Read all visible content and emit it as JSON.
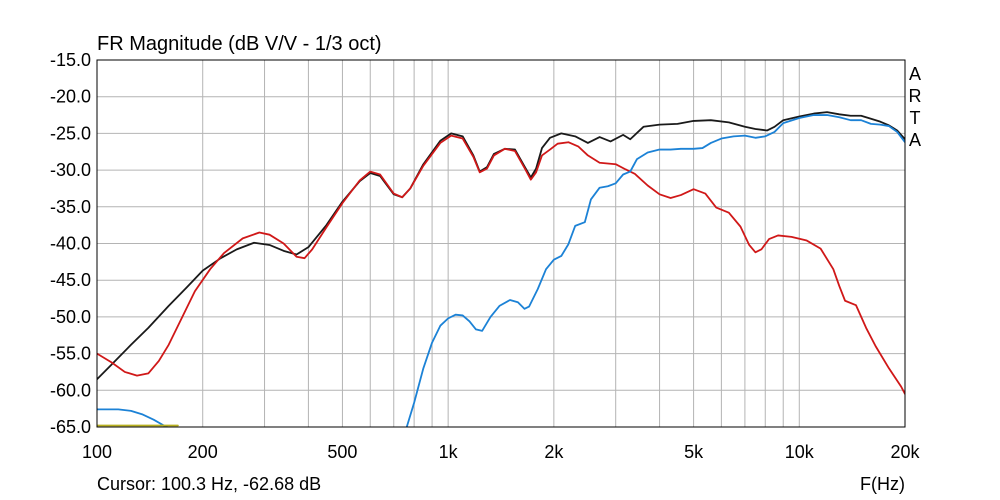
{
  "chart_data": {
    "type": "line",
    "title": "FR Magnitude (dB V/V - 1/3 oct)",
    "xlabel": "F(Hz)",
    "ylabel": "",
    "x_scale": "log",
    "xlim": [
      100,
      20000
    ],
    "ylim": [
      -65,
      -15
    ],
    "grid": true,
    "watermark": "ARTA",
    "cursor_readout": "Cursor: 100.3 Hz, -62.68 dB",
    "x_ticks": [
      {
        "value": 100,
        "label": "100"
      },
      {
        "value": 200,
        "label": "200"
      },
      {
        "value": 500,
        "label": "500"
      },
      {
        "value": 1000,
        "label": "1k"
      },
      {
        "value": 2000,
        "label": "2k"
      },
      {
        "value": 5000,
        "label": "5k"
      },
      {
        "value": 10000,
        "label": "10k"
      },
      {
        "value": 20000,
        "label": "20k"
      }
    ],
    "y_ticks": [
      {
        "value": -15,
        "label": "-15.0"
      },
      {
        "value": -20,
        "label": "-20.0"
      },
      {
        "value": -25,
        "label": "-25.0"
      },
      {
        "value": -30,
        "label": "-30.0"
      },
      {
        "value": -35,
        "label": "-35.0"
      },
      {
        "value": -40,
        "label": "-40.0"
      },
      {
        "value": -45,
        "label": "-45.0"
      },
      {
        "value": -50,
        "label": "-50.0"
      },
      {
        "value": -55,
        "label": "-55.0"
      },
      {
        "value": -60,
        "label": "-60.0"
      },
      {
        "value": -65,
        "label": "-65.0"
      }
    ],
    "series": [
      {
        "color": "#1a1a1a",
        "points": [
          [
            100,
            -58.5
          ],
          [
            110,
            -56.5
          ],
          [
            125,
            -53.8
          ],
          [
            140,
            -51.5
          ],
          [
            160,
            -48.5
          ],
          [
            180,
            -46
          ],
          [
            200,
            -43.7
          ],
          [
            225,
            -42
          ],
          [
            250,
            -40.8
          ],
          [
            280,
            -39.9
          ],
          [
            310,
            -40.2
          ],
          [
            340,
            -41
          ],
          [
            370,
            -41.5
          ],
          [
            400,
            -40.5
          ],
          [
            450,
            -37.5
          ],
          [
            500,
            -34.3
          ],
          [
            560,
            -31.5
          ],
          [
            600,
            -30.4
          ],
          [
            640,
            -30.8
          ],
          [
            700,
            -33.3
          ],
          [
            740,
            -33.7
          ],
          [
            780,
            -32.5
          ],
          [
            850,
            -29.2
          ],
          [
            950,
            -26
          ],
          [
            1020,
            -25
          ],
          [
            1100,
            -25.4
          ],
          [
            1180,
            -28
          ],
          [
            1230,
            -30.2
          ],
          [
            1290,
            -29.6
          ],
          [
            1350,
            -27.8
          ],
          [
            1450,
            -27.1
          ],
          [
            1550,
            -27.2
          ],
          [
            1650,
            -29.5
          ],
          [
            1720,
            -31
          ],
          [
            1780,
            -29.8
          ],
          [
            1850,
            -27
          ],
          [
            1950,
            -25.6
          ],
          [
            2100,
            -25
          ],
          [
            2300,
            -25.4
          ],
          [
            2500,
            -26.3
          ],
          [
            2700,
            -25.5
          ],
          [
            2900,
            -26.1
          ],
          [
            3150,
            -25.2
          ],
          [
            3300,
            -25.8
          ],
          [
            3600,
            -24.1
          ],
          [
            4000,
            -23.8
          ],
          [
            4500,
            -23.7
          ],
          [
            5000,
            -23.3
          ],
          [
            5600,
            -23.2
          ],
          [
            6300,
            -23.5
          ],
          [
            7000,
            -24.1
          ],
          [
            7500,
            -24.4
          ],
          [
            8100,
            -24.6
          ],
          [
            8500,
            -24.1
          ],
          [
            9000,
            -23.2
          ],
          [
            10000,
            -22.7
          ],
          [
            11000,
            -22.3
          ],
          [
            12000,
            -22.1
          ],
          [
            13000,
            -22.4
          ],
          [
            14000,
            -22.6
          ],
          [
            15000,
            -22.6
          ],
          [
            16000,
            -23
          ],
          [
            17000,
            -23.4
          ],
          [
            18000,
            -23.9
          ],
          [
            19000,
            -24.6
          ],
          [
            20000,
            -25.8
          ]
        ]
      },
      {
        "color": "#d01818",
        "points": [
          [
            100,
            -55
          ],
          [
            110,
            -56.2
          ],
          [
            120,
            -57.5
          ],
          [
            130,
            -58
          ],
          [
            140,
            -57.7
          ],
          [
            150,
            -56
          ],
          [
            160,
            -53.8
          ],
          [
            175,
            -50
          ],
          [
            190,
            -46.5
          ],
          [
            210,
            -43.5
          ],
          [
            230,
            -41.3
          ],
          [
            260,
            -39.3
          ],
          [
            290,
            -38.5
          ],
          [
            310,
            -38.8
          ],
          [
            340,
            -40
          ],
          [
            370,
            -41.8
          ],
          [
            390,
            -42
          ],
          [
            410,
            -40.8
          ],
          [
            450,
            -37.8
          ],
          [
            500,
            -34.5
          ],
          [
            560,
            -31.4
          ],
          [
            600,
            -30.2
          ],
          [
            640,
            -30.6
          ],
          [
            700,
            -33.2
          ],
          [
            740,
            -33.7
          ],
          [
            780,
            -32.5
          ],
          [
            850,
            -29.4
          ],
          [
            950,
            -26.3
          ],
          [
            1020,
            -25.3
          ],
          [
            1100,
            -25.7
          ],
          [
            1180,
            -28.2
          ],
          [
            1230,
            -30.3
          ],
          [
            1290,
            -29.8
          ],
          [
            1350,
            -28
          ],
          [
            1450,
            -27.1
          ],
          [
            1550,
            -27.4
          ],
          [
            1650,
            -29.7
          ],
          [
            1720,
            -31.3
          ],
          [
            1780,
            -30.3
          ],
          [
            1850,
            -28
          ],
          [
            1950,
            -27.2
          ],
          [
            2050,
            -26.4
          ],
          [
            2200,
            -26.2
          ],
          [
            2350,
            -26.8
          ],
          [
            2500,
            -28
          ],
          [
            2700,
            -29
          ],
          [
            3000,
            -29.2
          ],
          [
            3200,
            -29.9
          ],
          [
            3400,
            -30.5
          ],
          [
            3700,
            -32.1
          ],
          [
            4000,
            -33.3
          ],
          [
            4300,
            -33.8
          ],
          [
            4600,
            -33.4
          ],
          [
            5000,
            -32.6
          ],
          [
            5400,
            -33.2
          ],
          [
            5800,
            -35.1
          ],
          [
            6300,
            -35.8
          ],
          [
            6800,
            -37.7
          ],
          [
            7200,
            -40.2
          ],
          [
            7500,
            -41.2
          ],
          [
            7800,
            -40.8
          ],
          [
            8200,
            -39.4
          ],
          [
            8700,
            -38.9
          ],
          [
            9500,
            -39.1
          ],
          [
            10500,
            -39.6
          ],
          [
            11500,
            -40.7
          ],
          [
            12500,
            -43.5
          ],
          [
            13000,
            -45.8
          ],
          [
            13500,
            -47.8
          ],
          [
            14500,
            -48.4
          ],
          [
            15500,
            -51.5
          ],
          [
            16500,
            -54
          ],
          [
            18000,
            -57
          ],
          [
            19500,
            -59.5
          ],
          [
            20000,
            -60.5
          ]
        ]
      },
      {
        "color": "#1c82d6",
        "points": [
          [
            760,
            -65.2
          ],
          [
            800,
            -61.7
          ],
          [
            850,
            -57
          ],
          [
            900,
            -53.5
          ],
          [
            950,
            -51.2
          ],
          [
            1000,
            -50.2
          ],
          [
            1050,
            -49.7
          ],
          [
            1100,
            -49.8
          ],
          [
            1150,
            -50.6
          ],
          [
            1200,
            -51.7
          ],
          [
            1250,
            -51.9
          ],
          [
            1320,
            -50
          ],
          [
            1400,
            -48.5
          ],
          [
            1500,
            -47.7
          ],
          [
            1580,
            -48
          ],
          [
            1650,
            -48.9
          ],
          [
            1700,
            -48.6
          ],
          [
            1800,
            -46.2
          ],
          [
            1900,
            -43.5
          ],
          [
            2000,
            -42.2
          ],
          [
            2100,
            -41.7
          ],
          [
            2200,
            -40.1
          ],
          [
            2300,
            -37.6
          ],
          [
            2450,
            -37.1
          ],
          [
            2550,
            -34
          ],
          [
            2700,
            -32.4
          ],
          [
            2850,
            -32.2
          ],
          [
            3000,
            -31.8
          ],
          [
            3150,
            -30.6
          ],
          [
            3300,
            -30.2
          ],
          [
            3450,
            -28.5
          ],
          [
            3700,
            -27.6
          ],
          [
            4000,
            -27.2
          ],
          [
            4300,
            -27.2
          ],
          [
            4600,
            -27.1
          ],
          [
            5000,
            -27.1
          ],
          [
            5300,
            -27
          ],
          [
            5600,
            -26.3
          ],
          [
            6000,
            -25.7
          ],
          [
            6500,
            -25.4
          ],
          [
            7000,
            -25.3
          ],
          [
            7500,
            -25.6
          ],
          [
            8000,
            -25.4
          ],
          [
            8500,
            -24.8
          ],
          [
            9000,
            -23.6
          ],
          [
            10000,
            -22.9
          ],
          [
            11000,
            -22.5
          ],
          [
            12000,
            -22.5
          ],
          [
            13000,
            -22.8
          ],
          [
            14000,
            -23.2
          ],
          [
            15000,
            -23.2
          ],
          [
            16000,
            -23.7
          ],
          [
            17000,
            -23.8
          ],
          [
            18000,
            -24
          ],
          [
            19000,
            -24.8
          ],
          [
            20000,
            -26.2
          ]
        ]
      },
      {
        "color": "#1c82d6",
        "points": [
          [
            100,
            -62.6
          ],
          [
            115,
            -62.6
          ],
          [
            125,
            -62.8
          ],
          [
            135,
            -63.3
          ],
          [
            145,
            -64
          ],
          [
            155,
            -64.8
          ],
          [
            162,
            -65.2
          ]
        ]
      },
      {
        "color": "#b8b020",
        "points": [
          [
            100,
            -64.8
          ],
          [
            170,
            -64.8
          ]
        ]
      }
    ]
  }
}
